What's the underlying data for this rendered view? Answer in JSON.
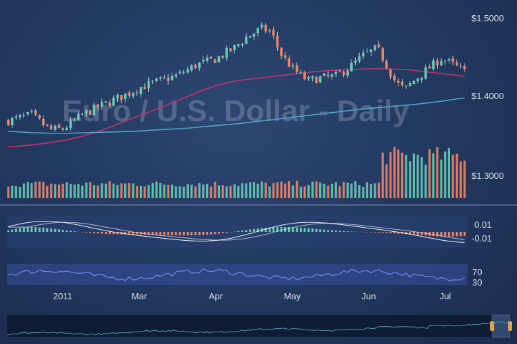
{
  "colors": {
    "up": "#68c9b3",
    "down": "#ee8466",
    "ma_short": "#c8306e",
    "ma_long": "#4aa6c8",
    "macd_line": "#e9f0f4",
    "signal_line": "#e9f0f4",
    "rsi_line": "#6e8ee6",
    "rsi_band": "#3a4fa0",
    "panel_bg": "#2a3f73",
    "navigator_bg": "#0e1d33",
    "navigator_line": "#4c9ab0"
  },
  "chart_data": [
    {
      "type": "candlestick",
      "title": "Euro / U.S. Dollar - Daily",
      "ylim": [
        1.26,
        1.51
      ],
      "y_ticks": [
        "$1.5000",
        "$1.4000",
        "$1.3000"
      ],
      "y_tick_values": [
        1.5,
        1.4,
        1.3
      ],
      "x_ticks": [
        "2011",
        "Mar",
        "Apr",
        "May",
        "Jun",
        "Jul"
      ],
      "x_tick_days": [
        19,
        49,
        80,
        110,
        141,
        171
      ],
      "series": [
        {
          "name": "ma_short",
          "start": [
            1.329,
            1.331,
            1.334,
            1.338,
            1.344,
            1.352,
            1.362,
            1.372,
            1.382,
            1.392,
            1.403,
            1.412,
            1.418,
            1.421,
            1.424,
            1.427,
            1.43,
            1.432,
            1.433,
            1.434,
            1.434,
            1.433,
            1.43,
            1.427,
            1.424
          ]
        },
        {
          "name": "ma_long",
          "values": [
            1.35,
            1.348,
            1.347,
            1.348,
            1.349,
            1.35,
            1.352,
            1.354,
            1.357,
            1.36,
            1.364,
            1.368,
            1.372,
            1.376,
            1.38,
            1.383,
            1.386,
            1.39,
            1.395
          ]
        }
      ],
      "volume_ylim": [
        0,
        60
      ]
    },
    {
      "type": "macd",
      "y_ticks": [
        "0.01",
        "-0.01"
      ]
    },
    {
      "type": "rsi",
      "y_ticks": [
        "70",
        "30"
      ]
    }
  ]
}
